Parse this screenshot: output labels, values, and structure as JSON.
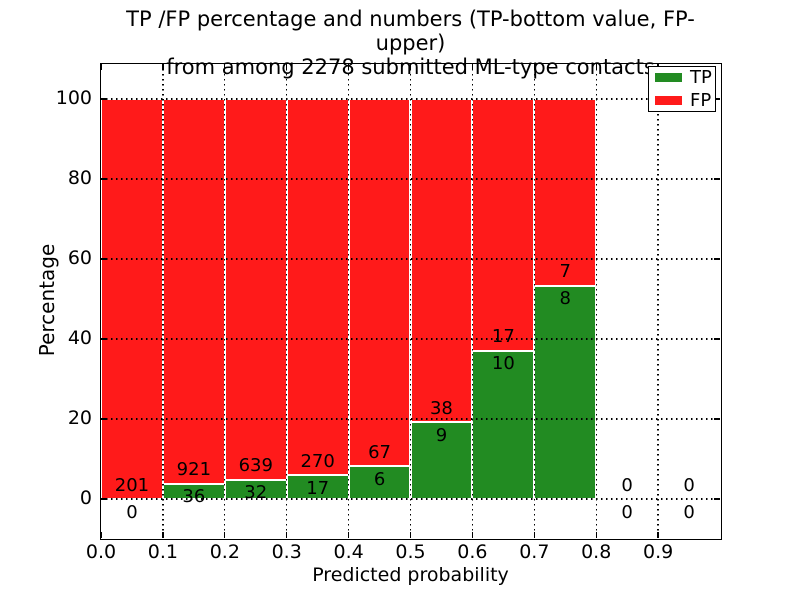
{
  "title": {
    "line1": "TP /FP percentage and numbers (TP-bottom value, FP-upper)",
    "line2": "from among 2278 submitted ML-type contacts"
  },
  "axes": {
    "xlabel": "Predicted probability",
    "ylabel": "Percentage",
    "x_ticks": [
      "0.0",
      "0.1",
      "0.2",
      "0.3",
      "0.4",
      "0.5",
      "0.6",
      "0.7",
      "0.8",
      "0.9"
    ],
    "y_ticks": [
      "0",
      "20",
      "40",
      "60",
      "80",
      "100"
    ]
  },
  "legend": {
    "items": [
      {
        "label": "TP",
        "color": "#228b22"
      },
      {
        "label": "FP",
        "color": "#ff1a1a"
      }
    ]
  },
  "colors": {
    "tp": "#228b22",
    "fp": "#ff1a1a",
    "grid": "#000000",
    "background": "#ffffff"
  },
  "chart_data": {
    "type": "bar",
    "stacked": true,
    "normalized_to_percent": true,
    "title": "TP /FP percentage and numbers (TP-bottom value, FP-upper) from among 2278 submitted ML-type contacts",
    "xlabel": "Predicted probability",
    "ylabel": "Percentage",
    "xlim": [
      0.0,
      1.0
    ],
    "ylim": [
      0,
      100
    ],
    "grid": true,
    "legend_position": "upper right",
    "total_contacts": 2278,
    "bin_width": 0.1,
    "series": [
      {
        "name": "TP",
        "color": "#228b22",
        "position": "bottom"
      },
      {
        "name": "FP",
        "color": "#ff1a1a",
        "position": "top"
      }
    ],
    "bins": [
      {
        "x_start": 0.0,
        "x_end": 0.1,
        "tp": 0,
        "fp": 201
      },
      {
        "x_start": 0.1,
        "x_end": 0.2,
        "tp": 36,
        "fp": 921
      },
      {
        "x_start": 0.2,
        "x_end": 0.3,
        "tp": 32,
        "fp": 639
      },
      {
        "x_start": 0.3,
        "x_end": 0.4,
        "tp": 17,
        "fp": 270
      },
      {
        "x_start": 0.4,
        "x_end": 0.5,
        "tp": 6,
        "fp": 67
      },
      {
        "x_start": 0.5,
        "x_end": 0.6,
        "tp": 9,
        "fp": 38
      },
      {
        "x_start": 0.6,
        "x_end": 0.7,
        "tp": 10,
        "fp": 17
      },
      {
        "x_start": 0.7,
        "x_end": 0.8,
        "tp": 8,
        "fp": 7
      },
      {
        "x_start": 0.8,
        "x_end": 0.9,
        "tp": 0,
        "fp": 0
      },
      {
        "x_start": 0.9,
        "x_end": 1.0,
        "tp": 0,
        "fp": 0
      }
    ]
  }
}
